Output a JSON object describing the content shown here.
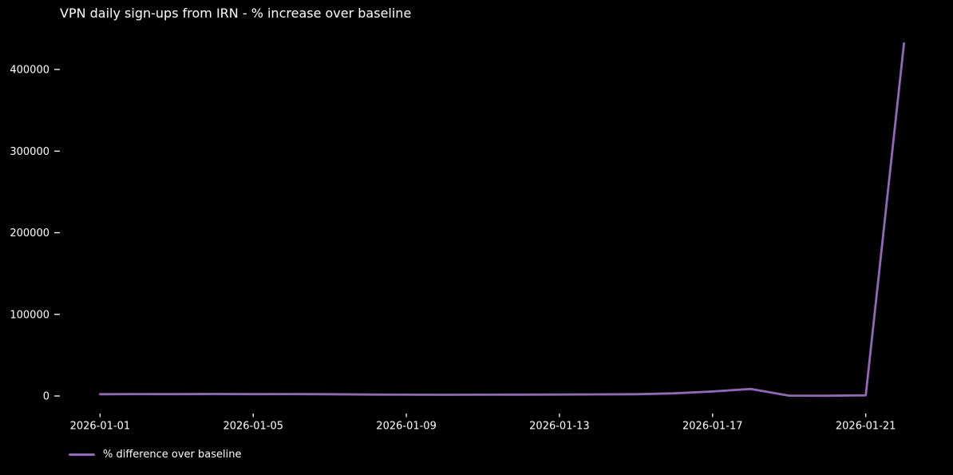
{
  "chart_data": {
    "type": "line",
    "title": "VPN daily sign-ups from IRN - % increase over baseline",
    "xlabel": "",
    "ylabel": "",
    "x": [
      "2026-01-01",
      "2026-01-02",
      "2026-01-03",
      "2026-01-04",
      "2026-01-05",
      "2026-01-06",
      "2026-01-07",
      "2026-01-08",
      "2026-01-09",
      "2026-01-10",
      "2026-01-11",
      "2026-01-12",
      "2026-01-13",
      "2026-01-14",
      "2026-01-15",
      "2026-01-16",
      "2026-01-17",
      "2026-01-18",
      "2026-01-19",
      "2026-01-20",
      "2026-01-21",
      "2026-01-22"
    ],
    "series": [
      {
        "name": "% difference over baseline",
        "values": [
          2200,
          2400,
          2300,
          2500,
          2300,
          2400,
          2200,
          1800,
          1600,
          1500,
          1600,
          1700,
          1800,
          2000,
          2200,
          3200,
          5500,
          8600,
          400,
          300,
          800,
          432000
        ]
      }
    ],
    "yticks": [
      0,
      100000,
      200000,
      300000,
      400000
    ],
    "xticks": [
      {
        "index": 0,
        "label": "2026-01-01"
      },
      {
        "index": 4,
        "label": "2026-01-05"
      },
      {
        "index": 8,
        "label": "2026-01-09"
      },
      {
        "index": 12,
        "label": "2026-01-13"
      },
      {
        "index": 16,
        "label": "2026-01-17"
      },
      {
        "index": 20,
        "label": "2026-01-21"
      }
    ],
    "xlim_days": [
      -1.05,
      22.05
    ],
    "ylim": [
      -21500,
      454800
    ],
    "grid": false,
    "legend": {
      "label": "% difference over baseline",
      "position": "lower-left-below-axis"
    },
    "line_color": "#9467bd",
    "background_color": "#000000",
    "text_color": "#ffffff"
  }
}
